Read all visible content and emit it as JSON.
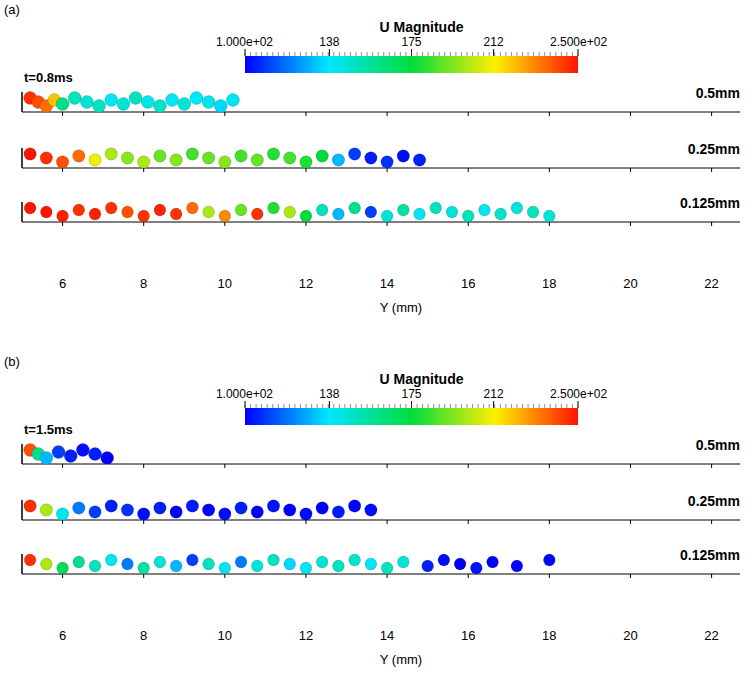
{
  "chart_data": [
    {
      "type": "scatter",
      "title": "(a)",
      "annotations": [
        "t=0.8ms"
      ],
      "x_label": "Y (mm)",
      "xlim": [
        5,
        22.7
      ],
      "xticks": [
        6,
        8,
        10,
        12,
        14,
        16,
        18,
        20,
        22
      ],
      "colorbar": {
        "title": "U Magnitude",
        "range": [
          100,
          250
        ],
        "ticks": [
          {
            "value": 100,
            "label": "1.000e+02"
          },
          138,
          175,
          212,
          {
            "value": 250,
            "label": "2.500e+02"
          }
        ]
      },
      "series": [
        {
          "name": "0.5mm",
          "x": [
            5.2,
            5.4,
            5.6,
            5.8,
            6.0,
            6.3,
            6.6,
            6.9,
            7.2,
            7.5,
            7.8,
            8.1,
            8.4,
            8.7,
            9.0,
            9.3,
            9.6,
            9.9,
            10.2
          ],
          "values": [
            245,
            240,
            235,
            220,
            160,
            150,
            145,
            150,
            140,
            145,
            150,
            142,
            148,
            140,
            145,
            138,
            142,
            135,
            140
          ]
        },
        {
          "name": "0.25mm",
          "x": [
            5.2,
            5.6,
            6.0,
            6.4,
            6.8,
            7.2,
            7.6,
            8.0,
            8.4,
            8.8,
            9.2,
            9.6,
            10.0,
            10.4,
            10.8,
            11.2,
            11.6,
            12.0,
            12.4,
            12.8,
            13.2,
            13.6,
            14.0,
            14.4,
            14.8
          ],
          "values": [
            250,
            245,
            240,
            235,
            210,
            200,
            195,
            200,
            190,
            195,
            185,
            190,
            195,
            185,
            190,
            180,
            185,
            180,
            175,
            130,
            110,
            105,
            108,
            102,
            105
          ]
        },
        {
          "name": "0.125mm",
          "x": [
            5.2,
            5.6,
            6.0,
            6.4,
            6.8,
            7.2,
            7.6,
            8.0,
            8.4,
            8.8,
            9.2,
            9.6,
            10.0,
            10.4,
            10.8,
            11.2,
            11.6,
            12.0,
            12.4,
            12.8,
            13.2,
            13.6,
            14.0,
            14.4,
            14.8,
            15.2,
            15.6,
            16.0,
            16.4,
            16.8,
            17.2,
            17.6,
            18.0
          ],
          "values": [
            250,
            250,
            248,
            245,
            248,
            245,
            240,
            245,
            248,
            245,
            235,
            200,
            230,
            190,
            245,
            180,
            200,
            175,
            150,
            130,
            160,
            110,
            145,
            155,
            140,
            150,
            145,
            150,
            140,
            148,
            145,
            150,
            145
          ]
        }
      ]
    },
    {
      "type": "scatter",
      "title": "(b)",
      "annotations": [
        "t=1.5ms"
      ],
      "x_label": "Y (mm)",
      "xlim": [
        5,
        22.7
      ],
      "xticks": [
        6,
        8,
        10,
        12,
        14,
        16,
        18,
        20,
        22
      ],
      "colorbar": {
        "title": "U Magnitude",
        "range": [
          100,
          250
        ],
        "ticks": [
          {
            "value": 100,
            "label": "1.000e+02"
          },
          138,
          175,
          212,
          {
            "value": 250,
            "label": "2.500e+02"
          }
        ]
      },
      "series": [
        {
          "name": "0.5mm",
          "x": [
            5.2,
            5.4,
            5.6,
            5.9,
            6.2,
            6.5,
            6.8,
            7.1
          ],
          "values": [
            240,
            160,
            130,
            110,
            105,
            102,
            105,
            100
          ]
        },
        {
          "name": "0.25mm",
          "x": [
            5.2,
            5.6,
            6.0,
            6.4,
            6.8,
            7.2,
            7.6,
            8.0,
            8.4,
            8.8,
            9.2,
            9.6,
            10.0,
            10.4,
            10.8,
            11.2,
            11.6,
            12.0,
            12.4,
            12.8,
            13.2,
            13.6
          ],
          "values": [
            245,
            200,
            140,
            120,
            110,
            105,
            108,
            102,
            105,
            100,
            104,
            100,
            102,
            105,
            100,
            103,
            100,
            102,
            100,
            104,
            100,
            102
          ]
        },
        {
          "name": "0.125mm",
          "x": [
            5.2,
            5.6,
            6.0,
            6.4,
            6.8,
            7.2,
            7.6,
            8.0,
            8.4,
            8.8,
            9.2,
            9.6,
            10.0,
            10.4,
            10.8,
            11.2,
            11.6,
            12.0,
            12.4,
            12.8,
            13.2,
            13.6,
            14.0,
            14.4,
            15.0,
            15.4,
            15.8,
            16.2,
            16.6,
            17.2,
            18.0
          ],
          "values": [
            245,
            200,
            170,
            160,
            150,
            140,
            120,
            155,
            145,
            130,
            110,
            150,
            140,
            120,
            145,
            150,
            135,
            140,
            145,
            150,
            148,
            140,
            150,
            145,
            105,
            102,
            100,
            103,
            100,
            101,
            100
          ]
        }
      ]
    }
  ]
}
